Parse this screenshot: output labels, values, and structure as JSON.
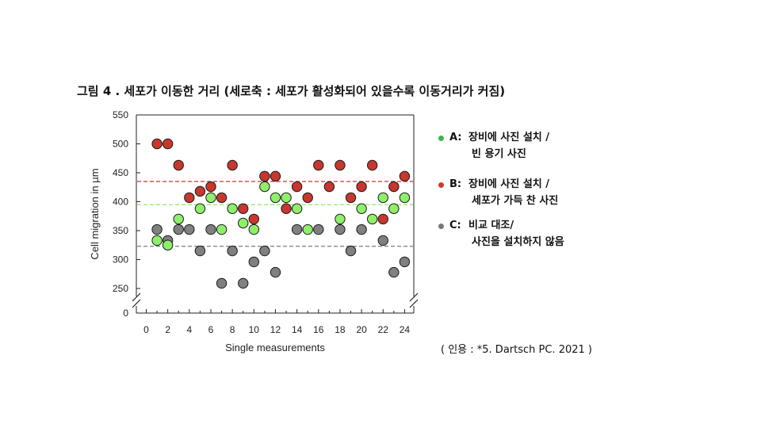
{
  "title": "그림 4  . 세포가 이동한 거리 (세로축 : 세포가 활성화되어 있을수록 이동거리가 커짐)",
  "legend": [
    {
      "key": "A:",
      "lines": [
        "장비에 사진 설치 /",
        "빈 용기 사진"
      ],
      "color": "#3cb44b"
    },
    {
      "key": "B:",
      "lines": [
        "장비에 사진 설치 /",
        "세포가 가득 찬 사진"
      ],
      "color": "#d03a2a"
    },
    {
      "key": "C:",
      "lines": [
        "비교 대조/",
        "사진을 설치하지 않음"
      ],
      "color": "#777777"
    }
  ],
  "citation": "( 인용 : *5. Dartsch PC. 2021 )",
  "chart_data": {
    "type": "scatter",
    "xlabel": "Single measurements",
    "ylabel": "Cell migration in µm",
    "xlim": [
      -1,
      25
    ],
    "ylim": [
      0,
      550
    ],
    "axis_break": [
      0,
      250
    ],
    "x_ticks": [
      0,
      2,
      4,
      6,
      8,
      10,
      12,
      14,
      16,
      18,
      20,
      22,
      24
    ],
    "y_ticks": [
      0,
      250,
      300,
      350,
      400,
      450,
      500,
      550
    ],
    "grid": false,
    "series": [
      {
        "key": "A",
        "color": "#8ef06a",
        "mean": 395,
        "mean_line_color": "#9de870",
        "points": [
          [
            1,
            333
          ],
          [
            2,
            325
          ],
          [
            3,
            370
          ],
          [
            4,
            null
          ],
          [
            5,
            388
          ],
          [
            6,
            407
          ],
          [
            7,
            352
          ],
          [
            8,
            388
          ],
          [
            9,
            363
          ],
          [
            10,
            352
          ],
          [
            11,
            426
          ],
          [
            12,
            407
          ],
          [
            13,
            407
          ],
          [
            14,
            388
          ],
          [
            15,
            352
          ],
          [
            16,
            null
          ],
          [
            17,
            null
          ],
          [
            18,
            370
          ],
          [
            19,
            null
          ],
          [
            20,
            388
          ],
          [
            21,
            370
          ],
          [
            22,
            407
          ],
          [
            23,
            388
          ],
          [
            24,
            407
          ]
        ]
      },
      {
        "key": "B",
        "color": "#c8372d",
        "mean": 435,
        "mean_line_color": "#d9443b",
        "points": [
          [
            1,
            500
          ],
          [
            2,
            500
          ],
          [
            3,
            463
          ],
          [
            4,
            407
          ],
          [
            5,
            418
          ],
          [
            6,
            426
          ],
          [
            7,
            407
          ],
          [
            8,
            463
          ],
          [
            9,
            388
          ],
          [
            10,
            370
          ],
          [
            11,
            444
          ],
          [
            12,
            444
          ],
          [
            13,
            388
          ],
          [
            14,
            426
          ],
          [
            15,
            407
          ],
          [
            16,
            463
          ],
          [
            17,
            426
          ],
          [
            18,
            463
          ],
          [
            19,
            407
          ],
          [
            20,
            426
          ],
          [
            21,
            463
          ],
          [
            22,
            370
          ],
          [
            23,
            426
          ],
          [
            24,
            444
          ]
        ]
      },
      {
        "key": "C",
        "color": "#808080",
        "mean": 323,
        "mean_line_color": "#888888",
        "points": [
          [
            1,
            352
          ],
          [
            2,
            333
          ],
          [
            3,
            352
          ],
          [
            4,
            352
          ],
          [
            5,
            315
          ],
          [
            6,
            352
          ],
          [
            7,
            259
          ],
          [
            8,
            315
          ],
          [
            9,
            259
          ],
          [
            10,
            296
          ],
          [
            11,
            315
          ],
          [
            12,
            278
          ],
          [
            13,
            null
          ],
          [
            14,
            352
          ],
          [
            15,
            null
          ],
          [
            16,
            352
          ],
          [
            17,
            null
          ],
          [
            18,
            352
          ],
          [
            19,
            315
          ],
          [
            20,
            352
          ],
          [
            21,
            null
          ],
          [
            22,
            333
          ],
          [
            23,
            278
          ],
          [
            24,
            296
          ]
        ]
      }
    ]
  }
}
